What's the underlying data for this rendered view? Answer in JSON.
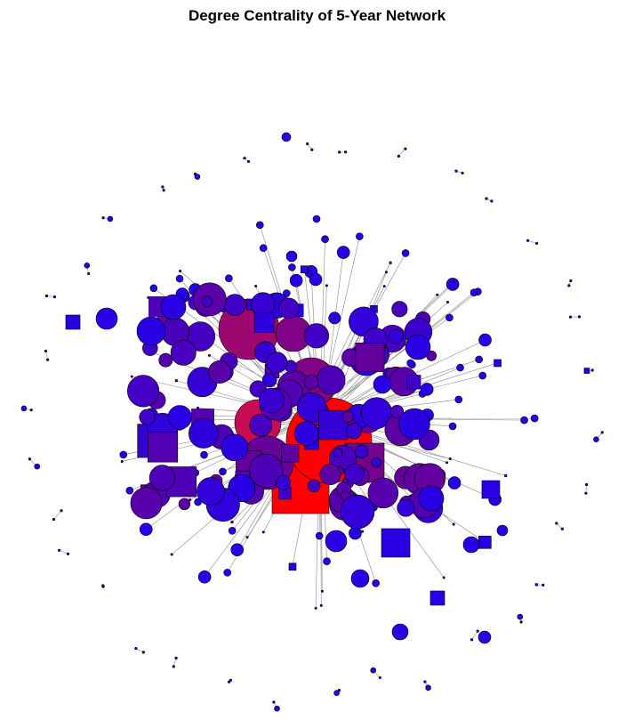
{
  "title": "Degree Centrality of 5-Year Network",
  "colors": {
    "low": "#2200ee",
    "mid": "#660099",
    "high": "#ee1133",
    "max": "#ff0000",
    "edge": "#9a9a9a",
    "outline": "#000000"
  },
  "legend": "none"
}
